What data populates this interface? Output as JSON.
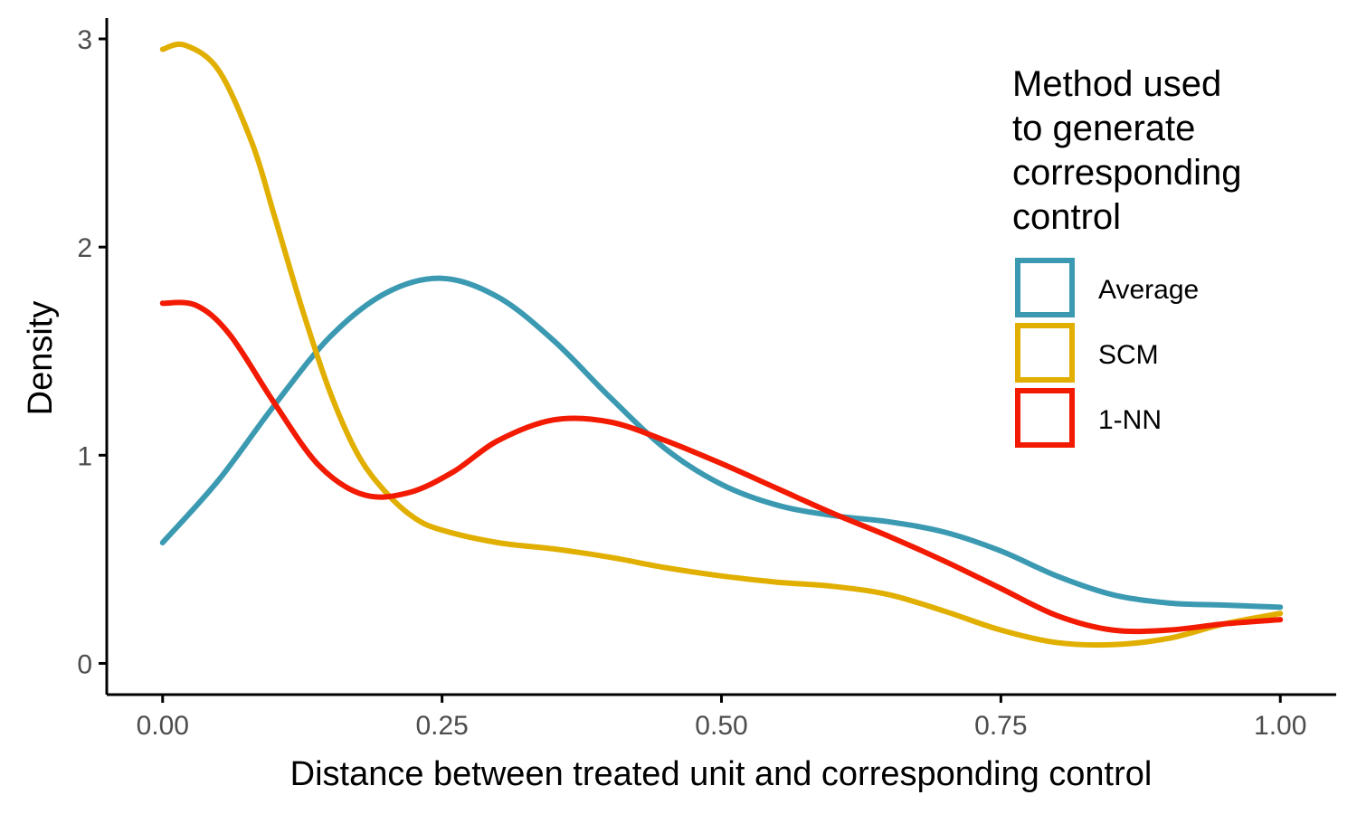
{
  "chart_data": {
    "type": "line",
    "xlabel": "Distance between treated unit and corresponding control",
    "ylabel": "Density",
    "xlim": [
      -0.05,
      1.05
    ],
    "ylim": [
      -0.15,
      3.1
    ],
    "x_ticks": [
      "0.00",
      "0.25",
      "0.50",
      "0.75",
      "1.00"
    ],
    "y_ticks": [
      "0",
      "1",
      "2",
      "3"
    ],
    "grid": false,
    "legend": {
      "title_lines": [
        "Method used",
        "to generate",
        "corresponding",
        "control"
      ],
      "placement": "top-right"
    },
    "series": [
      {
        "name": "Average",
        "color": "#3B9AB2",
        "points": [
          [
            0.0,
            0.58
          ],
          [
            0.05,
            0.88
          ],
          [
            0.1,
            1.24
          ],
          [
            0.15,
            1.57
          ],
          [
            0.2,
            1.78
          ],
          [
            0.25,
            1.85
          ],
          [
            0.3,
            1.76
          ],
          [
            0.35,
            1.55
          ],
          [
            0.4,
            1.28
          ],
          [
            0.45,
            1.03
          ],
          [
            0.5,
            0.86
          ],
          [
            0.55,
            0.76
          ],
          [
            0.6,
            0.71
          ],
          [
            0.65,
            0.68
          ],
          [
            0.7,
            0.63
          ],
          [
            0.75,
            0.54
          ],
          [
            0.8,
            0.42
          ],
          [
            0.85,
            0.33
          ],
          [
            0.9,
            0.29
          ],
          [
            0.95,
            0.28
          ],
          [
            1.0,
            0.27
          ]
        ]
      },
      {
        "name": "SCM",
        "color": "#E1AF00",
        "points": [
          [
            0.0,
            2.95
          ],
          [
            0.02,
            2.97
          ],
          [
            0.05,
            2.85
          ],
          [
            0.08,
            2.5
          ],
          [
            0.1,
            2.15
          ],
          [
            0.125,
            1.7
          ],
          [
            0.15,
            1.3
          ],
          [
            0.175,
            1.0
          ],
          [
            0.2,
            0.82
          ],
          [
            0.225,
            0.7
          ],
          [
            0.25,
            0.64
          ],
          [
            0.3,
            0.58
          ],
          [
            0.35,
            0.55
          ],
          [
            0.4,
            0.51
          ],
          [
            0.45,
            0.46
          ],
          [
            0.5,
            0.42
          ],
          [
            0.55,
            0.39
          ],
          [
            0.6,
            0.37
          ],
          [
            0.65,
            0.33
          ],
          [
            0.7,
            0.25
          ],
          [
            0.75,
            0.16
          ],
          [
            0.8,
            0.1
          ],
          [
            0.85,
            0.09
          ],
          [
            0.9,
            0.12
          ],
          [
            0.95,
            0.19
          ],
          [
            1.0,
            0.24
          ]
        ]
      },
      {
        "name": "1-NN",
        "color": "#F21A00",
        "points": [
          [
            0.0,
            1.73
          ],
          [
            0.03,
            1.72
          ],
          [
            0.06,
            1.58
          ],
          [
            0.1,
            1.25
          ],
          [
            0.14,
            0.95
          ],
          [
            0.18,
            0.81
          ],
          [
            0.22,
            0.82
          ],
          [
            0.26,
            0.92
          ],
          [
            0.3,
            1.07
          ],
          [
            0.35,
            1.17
          ],
          [
            0.4,
            1.16
          ],
          [
            0.45,
            1.07
          ],
          [
            0.5,
            0.96
          ],
          [
            0.55,
            0.84
          ],
          [
            0.6,
            0.72
          ],
          [
            0.65,
            0.61
          ],
          [
            0.7,
            0.49
          ],
          [
            0.75,
            0.36
          ],
          [
            0.8,
            0.23
          ],
          [
            0.85,
            0.16
          ],
          [
            0.9,
            0.16
          ],
          [
            0.95,
            0.19
          ],
          [
            1.0,
            0.21
          ]
        ]
      }
    ]
  }
}
